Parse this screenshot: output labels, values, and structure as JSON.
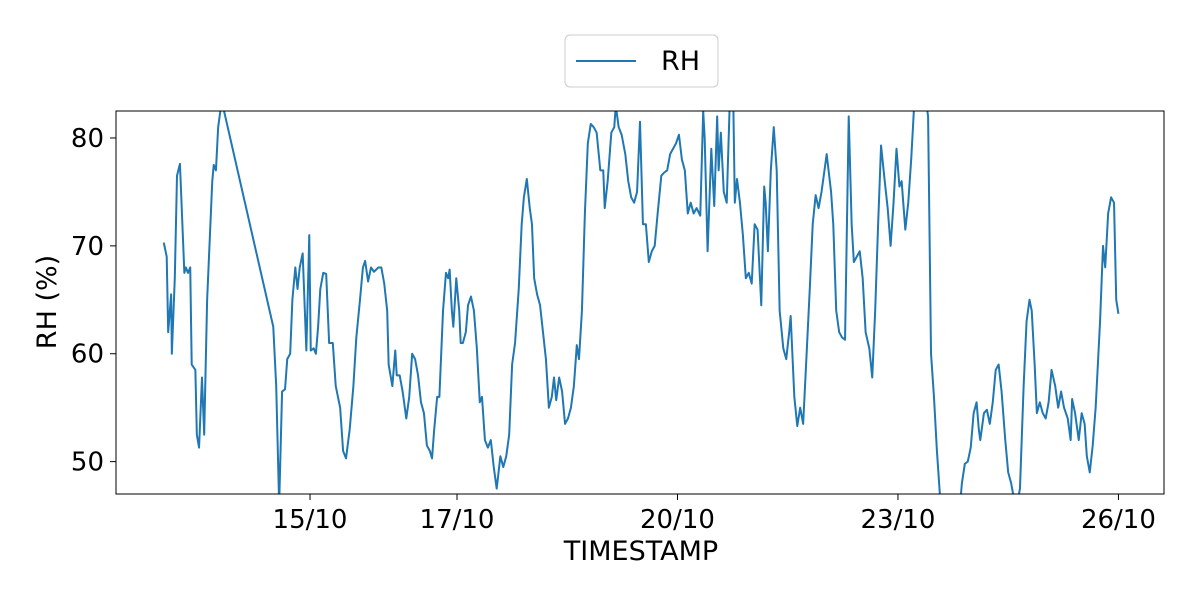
{
  "chart_data": {
    "type": "line",
    "x_label": "TIMESTAMP",
    "y_label": "RH (%)",
    "xlim": [
      12.36,
      26.62
    ],
    "ylim": [
      47.0,
      82.5
    ],
    "xticks": [
      {
        "value": 15,
        "label": "15/10"
      },
      {
        "value": 17,
        "label": "17/10"
      },
      {
        "value": 20,
        "label": "20/10"
      },
      {
        "value": 23,
        "label": "23/10"
      },
      {
        "value": 26,
        "label": "26/10"
      }
    ],
    "yticks": [
      50,
      60,
      70,
      80
    ],
    "legend": "upper center",
    "x": [
      13.01,
      13.05,
      13.07,
      13.11,
      13.12,
      13.16,
      13.19,
      13.23,
      13.29,
      13.31,
      13.34,
      13.37,
      13.39,
      13.44,
      13.46,
      13.49,
      13.53,
      13.56,
      13.6,
      13.67,
      13.69,
      13.72,
      13.75,
      13.79,
      13.83,
      14.5,
      14.54,
      14.58,
      14.62,
      14.66,
      14.69,
      14.73,
      14.76,
      14.8,
      14.83,
      14.86,
      14.9,
      14.95,
      14.99,
      15.01,
      15.05,
      15.08,
      15.11,
      15.14,
      15.18,
      15.22,
      15.26,
      15.31,
      15.35,
      15.41,
      15.45,
      15.49,
      15.54,
      15.59,
      15.63,
      15.68,
      15.72,
      15.75,
      15.79,
      15.83,
      15.87,
      15.93,
      15.97,
      16.01,
      16.05,
      16.07,
      16.12,
      16.16,
      16.18,
      16.22,
      16.26,
      16.31,
      16.35,
      16.39,
      16.43,
      16.47,
      16.51,
      16.55,
      16.59,
      16.63,
      16.66,
      16.69,
      16.73,
      16.76,
      16.81,
      16.85,
      16.88,
      16.9,
      16.93,
      16.95,
      16.99,
      17.03,
      17.05,
      17.08,
      17.12,
      17.15,
      17.19,
      17.23,
      17.27,
      17.31,
      17.34,
      17.38,
      17.42,
      17.46,
      17.5,
      17.54,
      17.59,
      17.63,
      17.67,
      17.71,
      17.75,
      17.79,
      17.84,
      17.88,
      17.91,
      17.95,
      17.99,
      18.02,
      18.05,
      18.09,
      18.13,
      18.17,
      18.21,
      18.25,
      18.29,
      18.32,
      18.35,
      18.39,
      18.43,
      18.47,
      18.51,
      18.55,
      18.59,
      18.63,
      18.66,
      18.7,
      18.74,
      18.78,
      18.82,
      18.86,
      18.9,
      18.95,
      18.99,
      19.01,
      19.05,
      19.1,
      19.14,
      19.16,
      19.2,
      19.24,
      19.29,
      19.33,
      19.37,
      19.41,
      19.45,
      19.49,
      19.53,
      19.57,
      19.61,
      19.65,
      19.69,
      19.73,
      19.78,
      19.82,
      19.86,
      19.9,
      19.94,
      19.98,
      20.02,
      20.06,
      20.1,
      20.14,
      20.18,
      20.22,
      20.26,
      20.31,
      20.35,
      20.37,
      20.41,
      20.46,
      20.5,
      20.54,
      20.56,
      20.59,
      20.63,
      20.67,
      20.71,
      20.76,
      20.78,
      20.81,
      20.85,
      20.89,
      20.93,
      20.97,
      21.01,
      21.05,
      21.09,
      21.14,
      21.18,
      21.2,
      21.23,
      21.27,
      21.31,
      21.35,
      21.39,
      21.44,
      21.48,
      21.52,
      21.54,
      21.59,
      21.63,
      21.67,
      21.71,
      21.75,
      21.8,
      21.84,
      21.88,
      21.92,
      21.96,
      22.0,
      22.03,
      22.09,
      22.12,
      22.16,
      22.2,
      22.24,
      22.28,
      22.33,
      22.37,
      22.4,
      22.44,
      22.48,
      22.52,
      22.56,
      22.61,
      22.65,
      22.69,
      22.73,
      22.77,
      22.82,
      22.86,
      22.9,
      22.94,
      22.98,
      23.02,
      23.05,
      23.1,
      23.14,
      23.18,
      23.22,
      23.26,
      23.31,
      23.37,
      23.41,
      23.45,
      23.49,
      23.53,
      23.57,
      23.61,
      23.82,
      23.87,
      23.91,
      23.95,
      23.99,
      24.03,
      24.07,
      24.1,
      24.12,
      24.17,
      24.21,
      24.25,
      24.29,
      24.33,
      24.37,
      24.41,
      24.46,
      24.5,
      24.54,
      24.58,
      24.62,
      24.66,
      24.71,
      24.75,
      24.79,
      24.82,
      24.86,
      24.89,
      24.93,
      24.97,
      25.01,
      25.05,
      25.09,
      25.14,
      25.18,
      25.22,
      25.26,
      25.31,
      25.35,
      25.37,
      25.41,
      25.46,
      25.5,
      25.54,
      25.57,
      25.61,
      25.65,
      25.69,
      25.75,
      25.79,
      25.82,
      25.86,
      25.9,
      25.94,
      25.97,
      26.0
    ],
    "series": [
      {
        "name": "RH",
        "color": "#1f77b4",
        "values": [
          70.3,
          69,
          62,
          65.5,
          60,
          67,
          76.5,
          77.6,
          67.5,
          68,
          67.5,
          68,
          59,
          58.5,
          52.5,
          51.3,
          57.8,
          52.5,
          65,
          76,
          77.5,
          77,
          81,
          83,
          82.5,
          62.5,
          57,
          46,
          56.5,
          56.7,
          59.5,
          60,
          65,
          68,
          66,
          68,
          69.3,
          60.3,
          71,
          60.3,
          60.5,
          60,
          62.5,
          66,
          67.5,
          67.4,
          61,
          61,
          57,
          55,
          51,
          50.3,
          53,
          57,
          61.5,
          65,
          68,
          68.6,
          66.7,
          68,
          67.6,
          68,
          68,
          66.5,
          64,
          59,
          57,
          60.3,
          58,
          58,
          56.5,
          54,
          56,
          60,
          59.5,
          58,
          55.5,
          54.5,
          51.5,
          51,
          50.3,
          53,
          56,
          56,
          64,
          67.5,
          67,
          67.8,
          64,
          62.5,
          67,
          64,
          61,
          61,
          62,
          64.5,
          65.3,
          64,
          60.5,
          55.5,
          56,
          52,
          51.3,
          52,
          49.5,
          47.5,
          50.5,
          49.5,
          50.5,
          52.5,
          59,
          61,
          66,
          72,
          74.5,
          76.2,
          73.5,
          72,
          67,
          65.5,
          64.5,
          62,
          59.5,
          55,
          56,
          57.8,
          55.7,
          57.8,
          56.5,
          53.5,
          54,
          55,
          57,
          60.8,
          59.5,
          64,
          73,
          79.5,
          81.3,
          81,
          80.5,
          77,
          77,
          73.5,
          76,
          80.5,
          81,
          83,
          81,
          80.3,
          78.5,
          76,
          74.5,
          74,
          75,
          81.5,
          72,
          72,
          68.5,
          69.5,
          70,
          73,
          76.5,
          76.8,
          77,
          78.5,
          79,
          79.5,
          80.3,
          78,
          77,
          73,
          74,
          73,
          73.5,
          72.8,
          82.5,
          80,
          69.5,
          79,
          73.7,
          82,
          77,
          80.5,
          75,
          74,
          83,
          83,
          74,
          76.2,
          74,
          71,
          67,
          67.5,
          66.5,
          72,
          71.5,
          64.5,
          75.5,
          74,
          69.5,
          77,
          81,
          77,
          64,
          60.5,
          59.5,
          62,
          63.5,
          56,
          53.3,
          55,
          53.5,
          59,
          66,
          72,
          74.7,
          73.5,
          75,
          77,
          78.5,
          75,
          72,
          64,
          62,
          61.5,
          61.3,
          82,
          72,
          68.5,
          69,
          69.5,
          67,
          62,
          60.5,
          57.8,
          64,
          72,
          79.3,
          76,
          73.5,
          70,
          74,
          79,
          75.5,
          76,
          71.5,
          74,
          78,
          83,
          84,
          84,
          84,
          82,
          60,
          56,
          51,
          47,
          44,
          44,
          48,
          49.8,
          50,
          51.3,
          54.5,
          55.5,
          53,
          52,
          54.5,
          54.8,
          53.5,
          55.5,
          58.5,
          59,
          56.5,
          52,
          49,
          48,
          46.5,
          46,
          47.5,
          57,
          63,
          65,
          64,
          59,
          54.5,
          55.5,
          54.5,
          54,
          55.5,
          58.5,
          57,
          55,
          56.5,
          55,
          54,
          52,
          55.8,
          54.5,
          52,
          54.5,
          53.5,
          50.5,
          49,
          51.5,
          55,
          63,
          70,
          68,
          73,
          74.5,
          74,
          65,
          63.7
        ]
      }
    ]
  }
}
